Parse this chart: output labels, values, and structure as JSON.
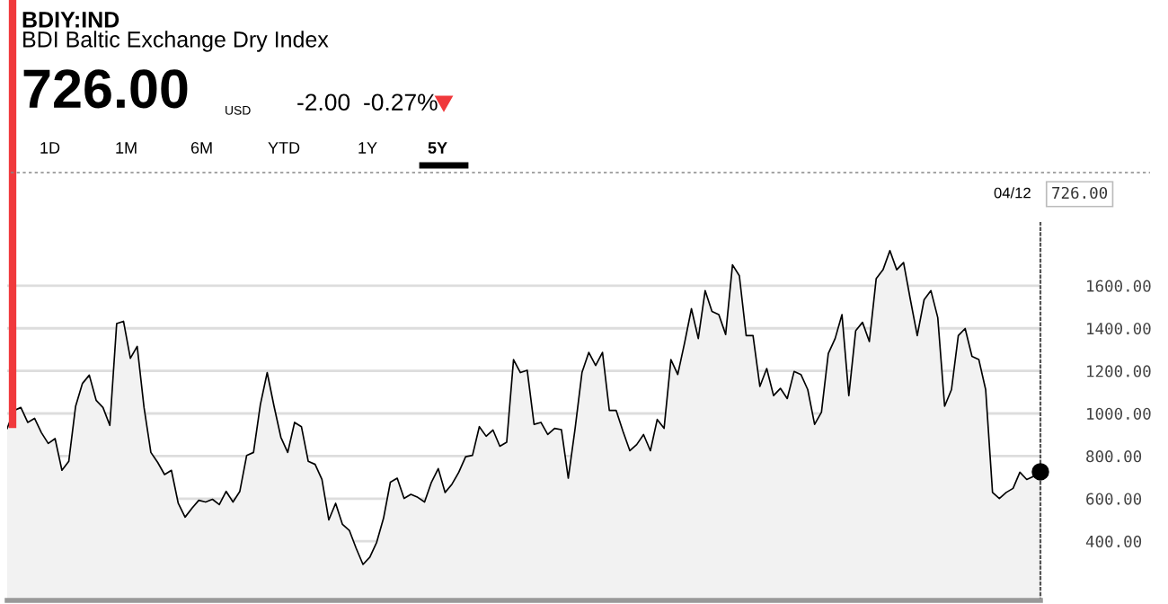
{
  "chart_data": {
    "type": "area",
    "title": "BDIY:IND",
    "subtitle": "BDI Baltic Exchange Dry Index",
    "annotations": [
      "726.00",
      "USD",
      "-2.00",
      "-0.27%",
      "1D",
      "1M",
      "6M",
      "YTD",
      "1Y",
      "5Y",
      "04/12",
      "726.00"
    ],
    "categories": [
      null,
      null,
      null,
      null,
      null,
      null,
      null,
      null,
      null,
      null,
      null,
      null,
      null,
      null,
      null,
      null,
      null,
      null,
      null,
      null,
      null,
      null,
      null,
      null,
      null,
      null,
      null,
      null,
      null,
      null,
      null,
      null,
      null,
      null,
      null,
      null,
      null,
      null,
      null,
      null,
      null,
      null,
      null,
      null,
      null,
      null,
      null,
      null,
      null,
      null,
      null,
      null,
      null,
      null,
      null,
      null,
      null,
      null,
      null,
      null,
      null,
      null,
      null,
      null,
      null,
      null,
      null,
      null,
      null,
      null,
      null,
      null,
      null,
      null,
      null,
      null,
      null,
      null,
      null,
      null,
      null,
      null,
      null,
      null,
      null,
      null,
      null,
      null,
      null,
      null,
      null,
      null,
      null,
      null,
      null,
      null,
      null,
      null,
      null,
      null,
      null,
      null,
      null,
      null,
      null,
      null,
      null,
      null,
      null,
      null,
      null,
      null,
      null,
      null,
      null,
      null,
      null,
      null,
      null,
      null,
      null,
      null,
      null,
      null,
      null,
      null,
      null,
      null,
      null,
      null,
      null,
      null,
      null,
      null,
      null,
      null,
      null,
      null,
      null,
      null,
      null,
      null,
      null,
      null,
      null,
      null,
      null,
      null,
      null,
      null,
      null,
      null
    ],
    "series": [
      {
        "color": "#000000",
        "values": [
          930,
          1014,
          1028,
          958,
          977,
          910,
          859,
          882,
          733,
          775,
          1034,
          1141,
          1180,
          1062,
          1028,
          944,
          1422,
          1433,
          1259,
          1315,
          1028,
          817,
          770,
          713,
          733,
          578,
          513,
          555,
          592,
          584,
          597,
          572,
          634,
          584,
          634,
          803,
          817,
          1042,
          1192,
          1034,
          888,
          817,
          958,
          938,
          775,
          761,
          690,
          500,
          578,
          479,
          451,
          367,
          291,
          325,
          395,
          508,
          677,
          696,
          601,
          620,
          606,
          584,
          677,
          741,
          629,
          668,
          724,
          797,
          803,
          938,
          893,
          922,
          846,
          865,
          1253,
          1192,
          1203,
          949,
          958,
          901,
          930,
          924,
          696,
          930,
          1192,
          1287,
          1225,
          1287,
          1014,
          1014,
          916,
          825,
          854,
          901,
          825,
          972,
          930,
          1253,
          1183,
          1332,
          1492,
          1352,
          1577,
          1479,
          1464,
          1371,
          1698,
          1647,
          1366,
          1366,
          1127,
          1211,
          1084,
          1118,
          1070,
          1197,
          1183,
          1112,
          949,
          1006,
          1281,
          1352,
          1464,
          1084,
          1388,
          1428,
          1338,
          1633,
          1675,
          1765,
          1675,
          1709,
          1534,
          1366,
          1534,
          1577,
          1450,
          1034,
          1112,
          1366,
          1399,
          1268,
          1253,
          1112,
          629,
          601,
          629,
          648,
          724,
          690,
          705,
          726
        ]
      }
    ],
    "ylim": [
      122,
      1895
    ],
    "yticks": [
      {
        "value": 400,
        "label": "400.00"
      },
      {
        "value": 600,
        "label": "600.00"
      },
      {
        "value": 800,
        "label": "800.00"
      },
      {
        "value": 1000,
        "label": "1000.00"
      },
      {
        "value": 1200,
        "label": "1200.00"
      },
      {
        "value": 1400,
        "label": "1400.00"
      },
      {
        "value": 1600,
        "label": "1600.00"
      }
    ],
    "grid": "y",
    "tick_labels": "y",
    "legend": false
  }
}
